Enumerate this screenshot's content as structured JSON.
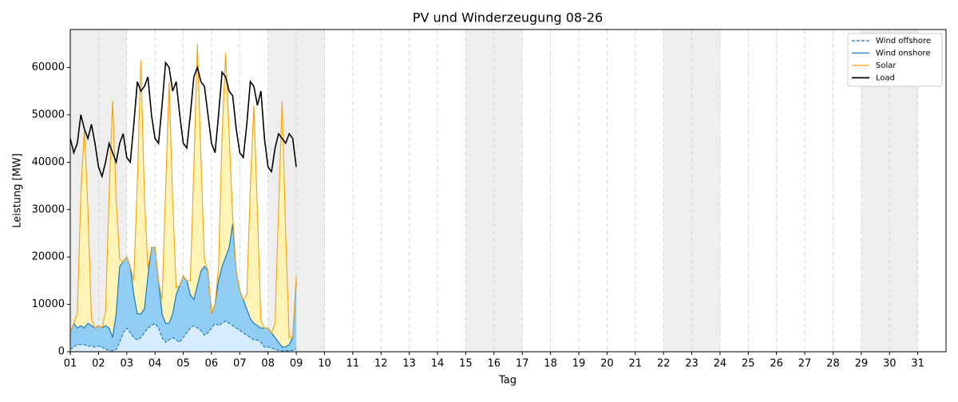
{
  "chart_data": {
    "type": "line",
    "title": "PV und Winderzeugung 08-26",
    "x_label": "Tag",
    "y_label": "Leistung [MW]",
    "xlim": [
      1,
      32
    ],
    "ylim": [
      0,
      68000
    ],
    "xticks": [
      {
        "value": 1,
        "label": "01"
      },
      {
        "value": 2,
        "label": "02"
      },
      {
        "value": 3,
        "label": "03"
      },
      {
        "value": 4,
        "label": "04"
      },
      {
        "value": 5,
        "label": "05"
      },
      {
        "value": 6,
        "label": "06"
      },
      {
        "value": 7,
        "label": "07"
      },
      {
        "value": 8,
        "label": "08"
      },
      {
        "value": 9,
        "label": "09"
      },
      {
        "value": 10,
        "label": "10"
      },
      {
        "value": 11,
        "label": "11"
      },
      {
        "value": 12,
        "label": "12"
      },
      {
        "value": 13,
        "label": "13"
      },
      {
        "value": 14,
        "label": "14"
      },
      {
        "value": 15,
        "label": "15"
      },
      {
        "value": 16,
        "label": "16"
      },
      {
        "value": 17,
        "label": "17"
      },
      {
        "value": 18,
        "label": "18"
      },
      {
        "value": 19,
        "label": "19"
      },
      {
        "value": 20,
        "label": "20"
      },
      {
        "value": 21,
        "label": "21"
      },
      {
        "value": 22,
        "label": "22"
      },
      {
        "value": 23,
        "label": "23"
      },
      {
        "value": 24,
        "label": "24"
      },
      {
        "value": 25,
        "label": "25"
      },
      {
        "value": 26,
        "label": "26"
      },
      {
        "value": 27,
        "label": "27"
      },
      {
        "value": 28,
        "label": "28"
      },
      {
        "value": 29,
        "label": "29"
      },
      {
        "value": 30,
        "label": "30"
      },
      {
        "value": 31,
        "label": "31"
      }
    ],
    "yticks": [
      0,
      10000,
      20000,
      30000,
      40000,
      50000,
      60000
    ],
    "x_grid": true,
    "weekend_spans": [
      [
        1,
        3
      ],
      [
        8,
        10
      ],
      [
        15,
        17
      ],
      [
        22,
        24
      ],
      [
        29,
        31
      ]
    ],
    "weekend_color": "#eeeeee",
    "legend": "upper right",
    "stacked": true,
    "x": [
      1,
      1.125,
      1.25,
      1.375,
      1.5,
      1.625,
      1.75,
      1.875,
      2,
      2.125,
      2.25,
      2.375,
      2.5,
      2.625,
      2.75,
      2.875,
      3,
      3.125,
      3.25,
      3.375,
      3.5,
      3.625,
      3.75,
      3.875,
      4,
      4.125,
      4.25,
      4.375,
      4.5,
      4.625,
      4.75,
      4.875,
      5,
      5.125,
      5.25,
      5.375,
      5.5,
      5.625,
      5.75,
      5.875,
      6,
      6.125,
      6.25,
      6.375,
      6.5,
      6.625,
      6.75,
      6.875,
      7,
      7.125,
      7.25,
      7.375,
      7.5,
      7.625,
      7.75,
      7.875,
      8,
      8.125,
      8.25,
      8.375,
      8.5,
      8.625,
      8.75,
      8.875,
      9
    ],
    "series": [
      {
        "name": "Wind offshore",
        "color": "#1f77b4",
        "fill": "#d6ecff",
        "dashed": true,
        "stack": true,
        "values": [
          500,
          1000,
          1500,
          1500,
          1500,
          1200,
          1200,
          1000,
          1200,
          1000,
          500,
          300,
          200,
          500,
          2000,
          4000,
          5000,
          4000,
          3000,
          2500,
          3000,
          4000,
          5000,
          5500,
          6000,
          5000,
          3000,
          2000,
          2500,
          3000,
          2500,
          2000,
          3000,
          4000,
          5000,
          5500,
          5000,
          4500,
          3500,
          4000,
          5000,
          6000,
          5500,
          6000,
          6500,
          6000,
          5500,
          5000,
          4500,
          4000,
          3500,
          3000,
          2500,
          2500,
          2000,
          1000,
          1000,
          800,
          500,
          300,
          200,
          200,
          200,
          300,
          500
        ]
      },
      {
        "name": "Wind onshore",
        "color": "#0a74b8",
        "fill": "#92cdf6",
        "dashed": false,
        "stack": true,
        "values": [
          3500,
          5000,
          3500,
          4000,
          3500,
          4800,
          4300,
          4000,
          4300,
          4000,
          5000,
          4700,
          2800,
          7500,
          16000,
          15000,
          15000,
          14000,
          9000,
          5500,
          5000,
          5000,
          11000,
          16500,
          16000,
          10000,
          5000,
          4000,
          3500,
          5000,
          9500,
          12000,
          13000,
          11000,
          7000,
          5500,
          9000,
          12500,
          14500,
          13000,
          3000,
          4000,
          9500,
          12000,
          13500,
          16000,
          21500,
          12000,
          8500,
          7000,
          5500,
          4000,
          3500,
          3000,
          3000,
          4000,
          4000,
          3200,
          2500,
          1700,
          800,
          800,
          1300,
          2700,
          14500
        ]
      },
      {
        "name": "Solar",
        "color": "#f5a010",
        "fill": "#fff3b6",
        "dashed": false,
        "stack": true,
        "values": [
          0,
          0,
          3000,
          28000,
          42000,
          24000,
          1500,
          0,
          0,
          0,
          3000,
          28000,
          50000,
          24000,
          1500,
          0,
          0,
          0,
          3000,
          28000,
          53500,
          24000,
          1500,
          0,
          0,
          0,
          3000,
          28000,
          51000,
          24000,
          1500,
          0,
          0,
          0,
          3000,
          28000,
          51000,
          24000,
          1500,
          0,
          0,
          0,
          3000,
          28000,
          43000,
          24000,
          1500,
          0,
          0,
          0,
          3000,
          28000,
          46000,
          24000,
          1500,
          0,
          0,
          0,
          3000,
          28000,
          52000,
          24000,
          1500,
          0,
          1000
        ]
      },
      {
        "name": "Load",
        "color": "#000000",
        "dashed": false,
        "stack": false,
        "values": [
          45000,
          42000,
          44000,
          50000,
          47000,
          45000,
          48000,
          44000,
          39000,
          37000,
          40000,
          44000,
          42000,
          40000,
          44000,
          46000,
          41000,
          40000,
          48000,
          57000,
          55000,
          56000,
          58000,
          50000,
          45000,
          44000,
          52000,
          61000,
          60000,
          55000,
          57000,
          50000,
          44000,
          43000,
          50000,
          58000,
          60000,
          57000,
          56000,
          50000,
          44000,
          42000,
          50000,
          59000,
          58000,
          55000,
          54000,
          47000,
          42000,
          41000,
          48000,
          57000,
          56000,
          52000,
          55000,
          45000,
          39000,
          38000,
          43000,
          46000,
          45000,
          44000,
          46000,
          45000,
          39000
        ]
      }
    ]
  }
}
